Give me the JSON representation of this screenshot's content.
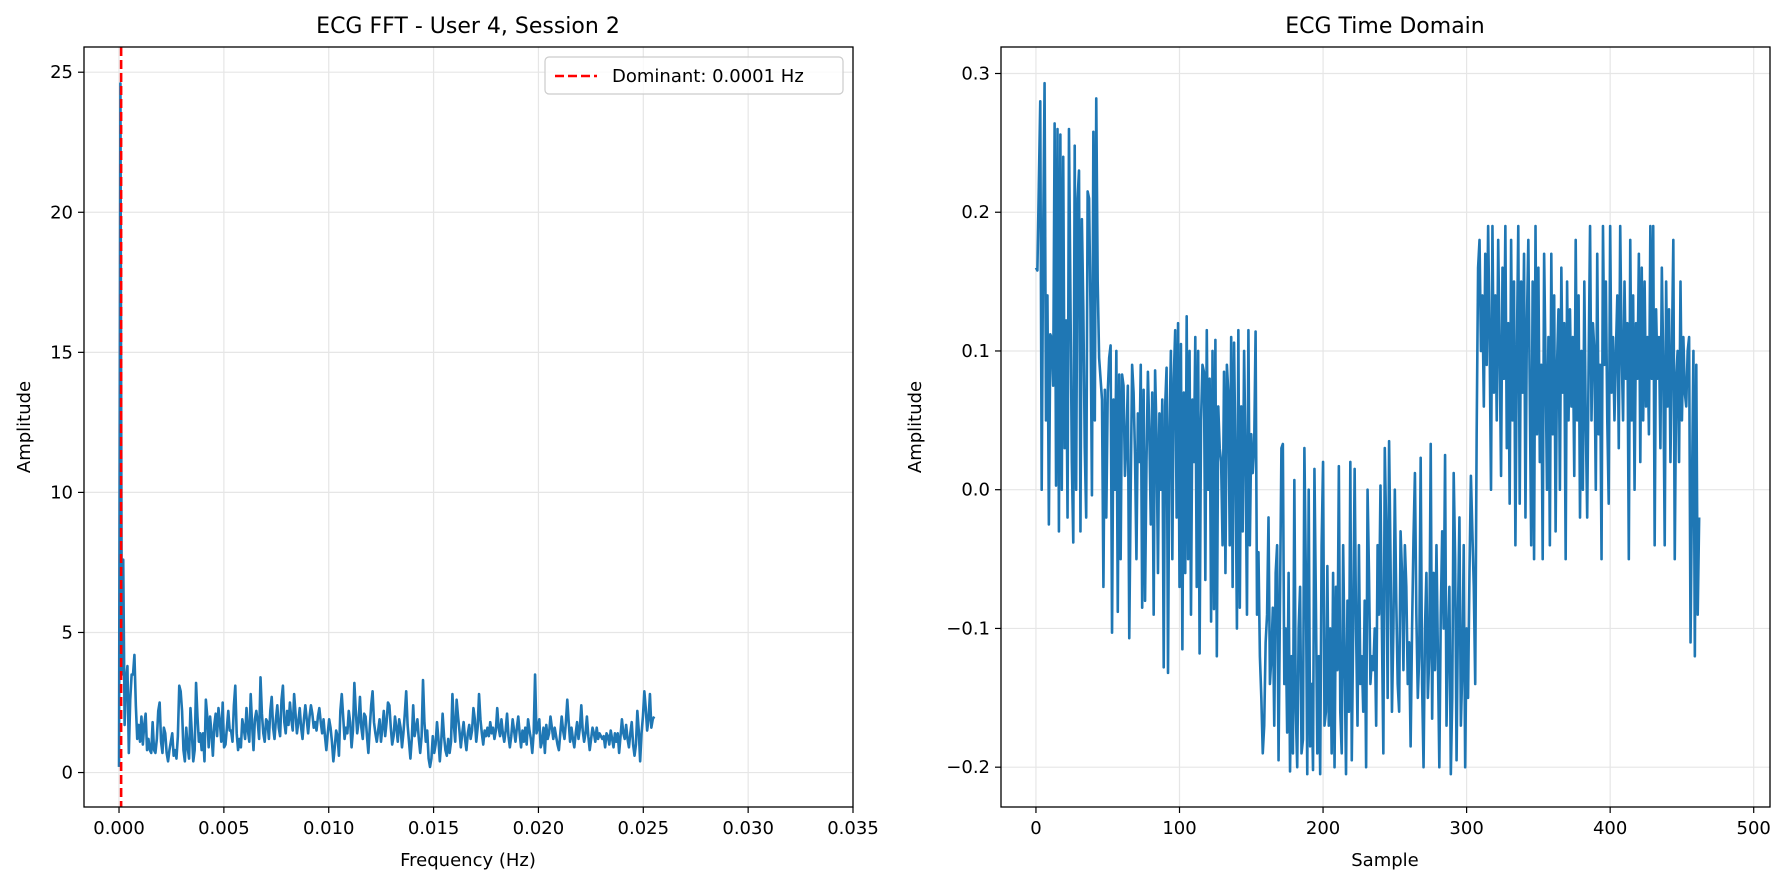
{
  "chart_data": [
    {
      "type": "line",
      "title": "ECG FFT - User 4, Session 2",
      "xlabel": "Frequency (Hz)",
      "ylabel": "Amplitude",
      "xlim": [
        -0.00167,
        0.035
      ],
      "ylim": [
        -1.23,
        25.9
      ],
      "xticks": [
        0.0,
        0.005,
        0.01,
        0.015,
        0.02,
        0.025,
        0.03,
        0.035
      ],
      "xtick_labels": [
        "0.000",
        "0.005",
        "0.010",
        "0.015",
        "0.020",
        "0.025",
        "0.030",
        "0.035"
      ],
      "yticks": [
        0,
        5,
        10,
        15,
        20,
        25
      ],
      "ytick_labels": [
        "0",
        "5",
        "10",
        "15",
        "20",
        "25"
      ],
      "grid": true,
      "legend": {
        "position": "upper right",
        "entries": [
          "Dominant: 0.0001 Hz"
        ]
      },
      "series": [
        {
          "color": "#1f77b4",
          "x_start": 0.0,
          "x_step": 6.68e-05,
          "values": [
            0.2,
            24.6,
            3.5,
            7.6,
            1.7,
            3.3,
            3.8,
            0.7,
            2.6,
            3.5,
            3.5,
            4.2,
            2.4,
            1.2,
            1.7,
            1.1,
            2,
            1,
            1.7,
            2.1,
            0.8,
            1.2,
            0.8,
            0.7,
            1.8,
            0.8,
            0.7,
            1.2,
            2.2,
            2.5,
            1.1,
            0.7,
            1.6,
            1.4,
            0.7,
            0.4,
            0.8,
            1.1,
            1.4,
            0.6,
            0.8,
            0.5,
            1.3,
            3.1,
            2.9,
            2.2,
            0.8,
            0.4,
            1.6,
            0.9,
            0.5,
            2.3,
            1.4,
            0.4,
            0.8,
            3.2,
            2,
            1.1,
            1.4,
            0.8,
            1.4,
            0.4,
            2.6,
            2,
            0.9,
            2,
            1.4,
            0.6,
            1.7,
            2.1,
            1.3,
            2.3,
            1.8,
            1.1,
            2.5,
            0.9,
            1,
            1.6,
            2.2,
            1.5,
            1.5,
            1.1,
            2.4,
            3.1,
            1.4,
            0.8,
            1.2,
            0.9,
            1.9,
            1.6,
            1.2,
            2.3,
            1.5,
            1.1,
            2.8,
            1.7,
            0.8,
            1.9,
            2.2,
            1.8,
            1.2,
            3.4,
            2.1,
            1.4,
            1.1,
            1.9,
            1.8,
            1.2,
            2.2,
            2.7,
            1.6,
            1.2,
            1.9,
            2.4,
            1.6,
            1.3,
            2.6,
            3.1,
            1.8,
            1.4,
            2.2,
            1.7,
            2.5,
            1.9,
            1.5,
            2.8,
            2.1,
            1.4,
            1.8,
            2.3,
            1.6,
            1.2,
            1.9,
            2.4,
            1.9,
            1.4,
            2,
            2.4,
            2.1,
            1.6,
            1.8,
            1.5,
            2,
            2.3,
            1.8,
            1.4,
            1.9,
            1.3,
            0.8,
            1.4,
            1.9,
            1.6,
            1.1,
            0.4,
            0.9,
            1.5,
            1.3,
            0.6,
            2.2,
            2.8,
            2,
            1.2,
            1.6,
            1.4,
            2.2,
            1.8,
            0.9,
            1.5,
            3.2,
            2.2,
            1.4,
            1.8,
            2.7,
            1.6,
            1.2,
            2.1,
            2,
            1.3,
            0.7,
            1.6,
            2.4,
            2.9,
            1.8,
            1.4,
            1.1,
            1.5,
            1.9,
            1.1,
            1.6,
            2.2,
            1.3,
            1.8,
            2.5,
            2.4,
            1.6,
            1,
            1.3,
            2,
            1.6,
            1.1,
            1.9,
            1.6,
            0.9,
            1.4,
            2.1,
            2.9,
            1.7,
            1.1,
            0.5,
            1.2,
            2.4,
            1.3,
            1.6,
            1.9,
            1.2,
            0.7,
            1.3,
            3.3,
            1.8,
            1.1,
            1.5,
            0.5,
            0.2,
            0.5,
            1.3,
            0.7,
            1,
            1.8,
            1.2,
            0.4,
            1.1,
            2.1,
            1.3,
            0.8,
            0.6,
            1.2,
            0.7,
            1.1,
            2.8,
            1.7,
            1.1,
            2.6,
            2,
            1.5,
            0.9,
            1.4,
            1.8,
            1.2,
            0.8,
            1.4,
            1.7,
            1.2,
            1.5,
            2.3,
            1.9,
            1.1,
            1.6,
            2.8,
            1.9,
            1.4,
            1,
            1.5,
            1.3,
            1.6,
            1.3,
            1.8,
            1.4,
            1.6,
            1.2,
            1.5,
            2.3,
            1.6,
            1.3,
            1.9,
            1.4,
            1.1,
            1.5,
            2.1,
            1.3,
            0.9,
            1.3,
            1.9,
            1.5,
            1.1,
            1.6,
            2,
            1.4,
            0.9,
            1.5,
            1.1,
            1.6,
            1,
            1.9,
            1.5,
            1.2,
            0.7,
            1.4,
            3.5,
            1.4,
            1.6,
            1.9,
            0.9,
            1.1,
            1.6,
            0.7,
            1.7,
            1.2,
            1.4,
            2,
            1.6,
            1.2,
            1.6,
            1.3,
            1,
            0.8,
            1.4,
            2,
            1.5,
            1.2,
            1.8,
            2.6,
            1.8,
            1.1,
            1.6,
            1.2,
            0.9,
            1.4,
            1.8,
            1.2,
            1.6,
            2.4,
            1.5,
            1.1,
            1.4,
            2,
            1.3,
            0.8,
            1.2,
            1.6,
            1.4,
            1.1,
            1.6,
            1.2,
            1.4,
            1.3,
            1.2,
            1.3,
            0.9,
            1.4,
            1.3,
            1,
            1.5,
            1.2,
            0.9,
            1.4,
            1.1,
            1.4,
            0.7,
            1.3,
            1.9,
            1.4,
            1.2,
            1.7,
            1.2,
            0.9,
            1.4,
            1.8,
            1,
            0.6,
            1,
            2.2,
            1.5,
            0.4,
            1.4,
            2,
            2.9,
            2.3,
            1.5,
            1.9,
            2.8,
            1.6,
            1.9,
            2
          ]
        }
      ],
      "vline": {
        "x": 0.0001,
        "color": "#ff0000",
        "style": "dashed",
        "label": "Dominant: 0.0001 Hz"
      }
    },
    {
      "type": "line",
      "title": "ECG Time Domain",
      "xlabel": "Sample",
      "ylabel": "Amplitude",
      "xlim": [
        -24.35,
        511.35
      ],
      "ylim": [
        -0.2287,
        0.3191
      ],
      "xticks": [
        0,
        100,
        200,
        300,
        400,
        500
      ],
      "xtick_labels": [
        "0",
        "100",
        "200",
        "300",
        "400",
        "500"
      ],
      "yticks": [
        -0.2,
        -0.1,
        0.0,
        0.1,
        0.2,
        0.3
      ],
      "ytick_labels": [
        "−0.2",
        "−0.1",
        "0.0",
        "0.1",
        "0.2",
        "0.3"
      ],
      "grid": true,
      "series": [
        {
          "color": "#1f77b4",
          "x_start": 0,
          "x_step": 1,
          "values": [
            0.16,
            0.158,
            0.22,
            0.28,
            0.0,
            0.18,
            0.293,
            0.05,
            0.14,
            -0.025,
            0.112,
            0.109,
            0.075,
            0.264,
            0.003,
            0.26,
            -0.03,
            0.256,
            0.0,
            0.24,
            0.03,
            0.122,
            -0.02,
            0.26,
            0.14,
            0.02,
            -0.038,
            0.248,
            0.0,
            0.21,
            0.23,
            -0.03,
            0.195,
            0.13,
            0.03,
            -0.02,
            0.215,
            0.21,
            0.13,
            -0.004,
            0.258,
            0.05,
            0.282,
            0.15,
            0.095,
            0.08,
            0.065,
            -0.07,
            0.072,
            -0.02,
            0.07,
            0.095,
            0.104,
            -0.103,
            0.065,
            0.0,
            0.1,
            -0.088,
            0.083,
            -0.05,
            0.083,
            0.075,
            0.01,
            0.035,
            0.075,
            -0.107,
            0.0,
            0.09,
            0.07,
            0.025,
            -0.05,
            0.055,
            0.02,
            0.09,
            -0.085,
            0.072,
            -0.08,
            0.02,
            0.085,
            0.04,
            -0.025,
            0.07,
            -0.09,
            0.086,
            0.04,
            -0.06,
            0.055,
            0.0,
            0.065,
            -0.128,
            0.06,
            0.088,
            -0.132,
            0.045,
            0.1,
            -0.05,
            0.08,
            0.115,
            -0.02,
            0.12,
            -0.07,
            0.105,
            -0.115,
            0.07,
            -0.06,
            0.125,
            -0.05,
            0.1,
            -0.09,
            0.065,
            0.02,
            0.11,
            -0.07,
            0.1,
            -0.118,
            0.05,
            0.09,
            0.085,
            -0.065,
            0.115,
            0.0,
            0.08,
            -0.095,
            0.1,
            -0.086,
            0.108,
            -0.12,
            0.06,
            0.03,
            0.02,
            -0.04,
            0.085,
            -0.06,
            0.09,
            0.07,
            -0.04,
            0.11,
            -0.07,
            0.106,
            0.02,
            -0.1,
            0.115,
            -0.085,
            0.06,
            -0.03,
            0.1,
            0.025,
            -0.09,
            0.115,
            -0.04,
            0.04,
            0.012,
            0.03,
            0.114,
            -0.09,
            -0.045,
            -0.12,
            -0.15,
            -0.19,
            -0.17,
            -0.11,
            -0.09,
            -0.02,
            -0.14,
            -0.12,
            -0.085,
            -0.17,
            -0.06,
            -0.04,
            -0.195,
            -0.08,
            0.03,
            0.033,
            -0.14,
            -0.1,
            -0.175,
            -0.06,
            -0.203,
            -0.12,
            -0.19,
            0.007,
            -0.16,
            -0.2,
            -0.1,
            -0.07,
            -0.19,
            -0.18,
            0.03,
            -0.06,
            -0.205,
            0.0,
            -0.185,
            -0.14,
            -0.202,
            0.015,
            -0.08,
            -0.19,
            -0.12,
            -0.205,
            -0.04,
            0.02,
            -0.17,
            -0.16,
            -0.055,
            -0.17,
            -0.1,
            -0.19,
            -0.06,
            -0.2,
            -0.07,
            -0.13,
            0.017,
            -0.16,
            -0.19,
            -0.04,
            -0.12,
            -0.205,
            -0.08,
            -0.16,
            0.02,
            -0.195,
            -0.1,
            0.015,
            -0.1,
            -0.17,
            -0.04,
            -0.14,
            -0.12,
            -0.16,
            -0.08,
            -0.2,
            0.0,
            -0.06,
            -0.14,
            -0.12,
            -0.13,
            -0.1,
            -0.17,
            -0.04,
            -0.09,
            0.003,
            -0.1,
            -0.19,
            0.03,
            -0.03,
            -0.15,
            0.035,
            -0.05,
            -0.16,
            -0.1,
            0.0,
            -0.08,
            -0.14,
            -0.16,
            -0.03,
            -0.06,
            -0.13,
            -0.04,
            -0.07,
            -0.14,
            -0.11,
            -0.185,
            -0.1,
            -0.035,
            0.012,
            -0.09,
            -0.15,
            -0.12,
            0.023,
            -0.14,
            -0.2,
            -0.1,
            -0.06,
            -0.15,
            -0.12,
            0.033,
            -0.165,
            -0.06,
            -0.13,
            -0.04,
            -0.12,
            -0.2,
            -0.09,
            -0.03,
            -0.1,
            0.025,
            -0.17,
            -0.11,
            -0.07,
            -0.205,
            -0.15,
            0.012,
            -0.05,
            -0.195,
            -0.09,
            -0.02,
            -0.17,
            -0.13,
            -0.04,
            -0.2,
            -0.1,
            -0.15,
            -0.06,
            0.01,
            -0.03,
            -0.07,
            -0.14,
            0.04,
            0.16,
            0.18,
            0.1,
            0.14,
            0.06,
            0.17,
            0.09,
            0.19,
            0.11,
            0.0,
            0.19,
            0.07,
            0.14,
            0.05,
            0.18,
            0.1,
            0.01,
            0.16,
            0.08,
            0.19,
            0.03,
            0.12,
            -0.01,
            0.18,
            0.05,
            0.15,
            -0.04,
            0.1,
            0.19,
            -0.01,
            0.15,
            0.07,
            0.17,
            -0.02,
            0.12,
            0.18,
            0.07,
            -0.04,
            0.15,
            -0.05,
            0.19,
            0.04,
            0.16,
            0.02,
            0.09,
            -0.05,
            0.17,
            0.09,
            0.0,
            0.11,
            -0.04,
            0.17,
            0.04,
            0.14,
            -0.03,
            0.09,
            0.13,
            0.0,
            0.16,
            0.07,
            0.12,
            -0.05,
            0.15,
            0.05,
            0.13,
            0.06,
            0.11,
            0.01,
            0.18,
            0.05,
            0.14,
            -0.02,
            0.1,
            0.0,
            0.15,
            0.05,
            -0.02,
            0.09,
            0.19,
            0.05,
            0.12,
            0.1,
            0.0,
            0.17,
            0.04,
            0.09,
            -0.05,
            0.19,
            0.09,
            0.15,
            0.05,
            -0.01,
            0.19,
            0.07,
            0.11,
            0.05,
            0.1,
            0.14,
            0.03,
            0.19,
            0.1,
            0.05,
            0.15,
            0.08,
            0.12,
            -0.05,
            0.18,
            0.05,
            0.14,
            0.0,
            0.12,
            0.08,
            0.17,
            0.02,
            0.16,
            0.05,
            0.15,
            0.06,
            0.11,
            0.04,
            0.19,
            0.08,
            0.19,
            -0.04,
            0.13,
            0.08,
            0.11,
            0.03,
            0.16,
            0.09,
            -0.04,
            0.15,
            0.06,
            0.13,
            0.02,
            0.1,
            0.18,
            -0.05,
            0.08,
            0.1,
            0.02,
            0.15,
            0.05,
            0.11,
            0.07,
            0.06,
            0.1,
            0.11,
            -0.11,
            0.0,
            0.1,
            -0.12,
            0.09,
            -0.09,
            -0.02
          ]
        }
      ]
    }
  ]
}
